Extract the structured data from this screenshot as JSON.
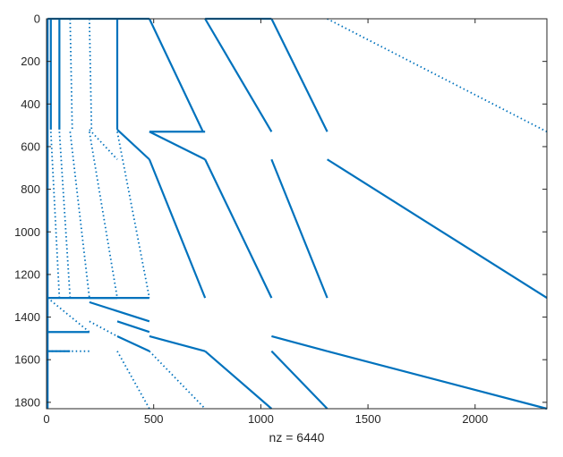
{
  "chart_data": {
    "type": "scatter",
    "title": "",
    "xlabel": "nz = 6440",
    "ylabel": "",
    "xlim": [
      0,
      2335
    ],
    "ylim": [
      0,
      1830
    ],
    "y_reversed": true,
    "x_ticks": [
      0,
      500,
      1000,
      1500,
      2000
    ],
    "y_ticks": [
      0,
      200,
      400,
      600,
      800,
      1000,
      1200,
      1400,
      1600,
      1800
    ],
    "grid": false,
    "legend": "none",
    "marker_color": "#0072BD",
    "series": [
      {
        "values": [
          {
            "x0": 5,
            "y0": 0,
            "x1": 480,
            "y1": 0,
            "style": "dense"
          },
          {
            "x0": 740,
            "y0": 0,
            "x1": 1050,
            "y1": 0,
            "style": "dense"
          },
          {
            "x0": 480,
            "y0": 0,
            "x1": 730,
            "y1": 530,
            "style": "dense"
          },
          {
            "x0": 740,
            "y0": 0,
            "x1": 1050,
            "y1": 530,
            "style": "dense"
          },
          {
            "x0": 1050,
            "y0": 0,
            "x1": 1310,
            "y1": 530,
            "style": "dense"
          },
          {
            "x0": 1310,
            "y0": 0,
            "x1": 2335,
            "y1": 530,
            "style": "sparse"
          },
          {
            "x0": 480,
            "y0": 530,
            "x1": 740,
            "y1": 530,
            "style": "dense"
          },
          {
            "x0": 480,
            "y0": 530,
            "x1": 740,
            "y1": 660,
            "style": "dense"
          },
          {
            "x0": 740,
            "y0": 660,
            "x1": 1050,
            "y1": 1310,
            "style": "dense"
          },
          {
            "x0": 1050,
            "y0": 660,
            "x1": 1310,
            "y1": 1310,
            "style": "dense"
          },
          {
            "x0": 1310,
            "y0": 660,
            "x1": 2335,
            "y1": 1310,
            "style": "dense"
          },
          {
            "x0": 480,
            "y0": 660,
            "x1": 740,
            "y1": 1310,
            "style": "dense"
          },
          {
            "x0": 330,
            "y0": 0,
            "x1": 330,
            "y1": 520,
            "style": "dense"
          },
          {
            "x0": 330,
            "y0": 520,
            "x1": 480,
            "y1": 660,
            "style": "dense"
          },
          {
            "x0": 480,
            "y0": 660,
            "x1": 480,
            "y1": 660,
            "style": "dense"
          },
          {
            "x0": 330,
            "y0": 530,
            "x1": 480,
            "y1": 1310,
            "style": "sparse"
          },
          {
            "x0": 200,
            "y0": 0,
            "x1": 210,
            "y1": 520,
            "style": "sparse"
          },
          {
            "x0": 200,
            "y0": 520,
            "x1": 330,
            "y1": 660,
            "style": "sparse"
          },
          {
            "x0": 200,
            "y0": 530,
            "x1": 330,
            "y1": 1310,
            "style": "sparse"
          },
          {
            "x0": 110,
            "y0": 0,
            "x1": 120,
            "y1": 520,
            "style": "sparse"
          },
          {
            "x0": 110,
            "y0": 530,
            "x1": 200,
            "y1": 1310,
            "style": "sparse"
          },
          {
            "x0": 60,
            "y0": 0,
            "x1": 60,
            "y1": 520,
            "style": "dense"
          },
          {
            "x0": 60,
            "y0": 530,
            "x1": 110,
            "y1": 1310,
            "style": "sparse"
          },
          {
            "x0": 20,
            "y0": 0,
            "x1": 20,
            "y1": 520,
            "style": "dense"
          },
          {
            "x0": 20,
            "y0": 530,
            "x1": 60,
            "y1": 1310,
            "style": "sparse"
          },
          {
            "x0": 5,
            "y0": 0,
            "x1": 5,
            "y1": 1830,
            "style": "dense"
          },
          {
            "x0": 5,
            "y0": 1310,
            "x1": 330,
            "y1": 1310,
            "style": "dense"
          },
          {
            "x0": 5,
            "y0": 1310,
            "x1": 200,
            "y1": 1470,
            "style": "sparse"
          },
          {
            "x0": 5,
            "y0": 1470,
            "x1": 200,
            "y1": 1470,
            "style": "dense"
          },
          {
            "x0": 200,
            "y0": 1310,
            "x1": 480,
            "y1": 1310,
            "style": "dense"
          },
          {
            "x0": 200,
            "y0": 1330,
            "x1": 480,
            "y1": 1420,
            "style": "dense"
          },
          {
            "x0": 200,
            "y0": 1420,
            "x1": 330,
            "y1": 1490,
            "style": "sparse"
          },
          {
            "x0": 330,
            "y0": 1420,
            "x1": 480,
            "y1": 1470,
            "style": "dense"
          },
          {
            "x0": 480,
            "y0": 1490,
            "x1": 740,
            "y1": 1560,
            "style": "dense"
          },
          {
            "x0": 1050,
            "y0": 1490,
            "x1": 1310,
            "y1": 1560,
            "style": "dense"
          },
          {
            "x0": 1310,
            "y0": 1560,
            "x1": 2335,
            "y1": 1830,
            "style": "dense"
          },
          {
            "x0": 330,
            "y0": 1490,
            "x1": 480,
            "y1": 1560,
            "style": "dense"
          },
          {
            "x0": 330,
            "y0": 1560,
            "x1": 480,
            "y1": 1830,
            "style": "sparse"
          },
          {
            "x0": 480,
            "y0": 1560,
            "x1": 740,
            "y1": 1830,
            "style": "sparse"
          },
          {
            "x0": 740,
            "y0": 1560,
            "x1": 1050,
            "y1": 1830,
            "style": "dense"
          },
          {
            "x0": 1050,
            "y0": 1560,
            "x1": 1310,
            "y1": 1830,
            "style": "dense"
          },
          {
            "x0": 5,
            "y0": 1560,
            "x1": 200,
            "y1": 1560,
            "style": "sparse"
          },
          {
            "x0": 5,
            "y0": 1560,
            "x1": 110,
            "y1": 1560,
            "style": "dense"
          }
        ]
      }
    ]
  }
}
